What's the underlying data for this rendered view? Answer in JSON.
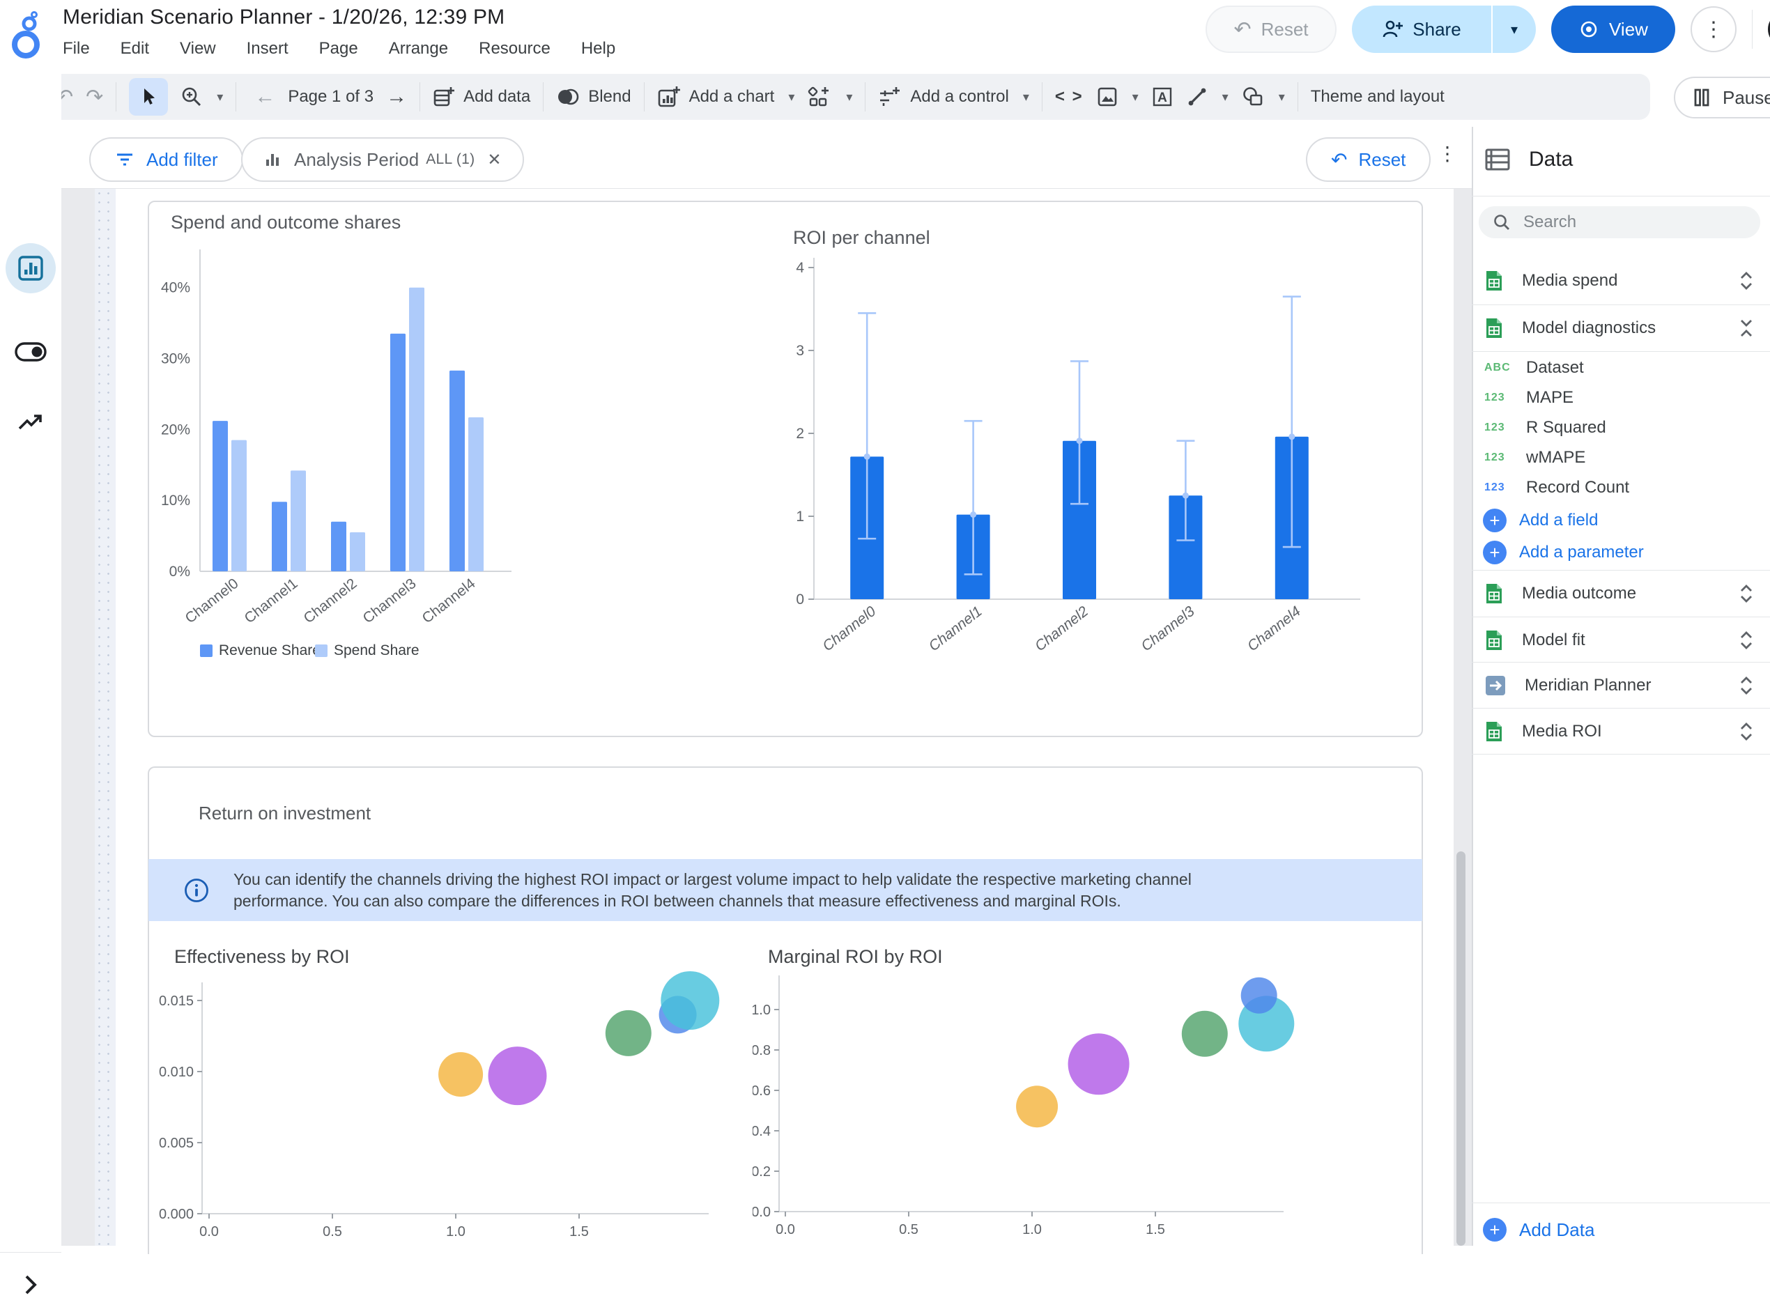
{
  "header": {
    "app_title": "Meridian Scenario Planner - 1/20/26, 12:39 PM",
    "menus": [
      "File",
      "Edit",
      "View",
      "Insert",
      "Page",
      "Arrange",
      "Resource",
      "Help"
    ],
    "reset_label": "Reset",
    "share_label": "Share",
    "view_label": "View"
  },
  "toolbar": {
    "page_label": "Page 1 of 3",
    "add_data_label": "Add data",
    "blend_label": "Blend",
    "add_chart_label": "Add a chart",
    "add_control_label": "Add a control",
    "theme_label": "Theme and layout",
    "pause_label": "Pause u"
  },
  "filter_bar": {
    "add_filter_label": "Add filter",
    "chip_name": "Analysis Period",
    "chip_value": "ALL (1)",
    "reset_label": "Reset"
  },
  "icons": {
    "undo": "↶",
    "redo": "↷",
    "back": "←",
    "forward": "→",
    "more": "⋮",
    "close": "✕",
    "caret": "▾",
    "code": "< >",
    "help": "?",
    "chevron_right": "›"
  },
  "cards": {
    "roi_title": "Return on investment",
    "roi_info_line1": "You can identify the channels driving the highest ROI impact or largest volume impact to help validate the respective marketing channel",
    "roi_info_line2": "performance. You can also compare the differences in ROI between channels that measure effectiveness and marginal ROIs."
  },
  "data_panel": {
    "title": "Data",
    "search_placeholder": "Search",
    "sources": [
      {
        "name": "Media spend",
        "icon": "sheets"
      },
      {
        "name": "Model diagnostics",
        "icon": "sheets",
        "expanded": true
      },
      {
        "name": "Media outcome",
        "icon": "sheets"
      },
      {
        "name": "Model fit",
        "icon": "sheets"
      },
      {
        "name": "Meridian Planner",
        "icon": "extract"
      },
      {
        "name": "Media ROI",
        "icon": "sheets"
      }
    ],
    "fields": [
      {
        "badge": "ABC",
        "name": "Dataset",
        "color": "green"
      },
      {
        "badge": "123",
        "name": "MAPE",
        "color": "green"
      },
      {
        "badge": "123",
        "name": "R Squared",
        "color": "green"
      },
      {
        "badge": "123",
        "name": "wMAPE",
        "color": "green"
      },
      {
        "badge": "123",
        "name": "Record Count",
        "color": "blue"
      }
    ],
    "add_field_label": "Add a field",
    "add_parameter_label": "Add a parameter",
    "add_data_label": "Add Data"
  },
  "chart_data": [
    {
      "type": "bar",
      "title": "Spend and outcome shares",
      "categories": [
        "Channel0",
        "Channel1",
        "Channel2",
        "Channel3",
        "Channel4"
      ],
      "series": [
        {
          "name": "Revenue Share",
          "color": "#5e97f6",
          "values": [
            21.2,
            9.8,
            7.0,
            33.5,
            28.3
          ]
        },
        {
          "name": "Spend Share",
          "color": "#aecbfa",
          "values": [
            18.5,
            14.2,
            5.5,
            40.0,
            21.7
          ]
        }
      ],
      "yticks": [
        "0%",
        "10%",
        "20%",
        "30%",
        "40%"
      ],
      "ylim": [
        0,
        44
      ],
      "legend_position": "bottom"
    },
    {
      "type": "bar",
      "title": "ROI per channel",
      "categories": [
        "Channel0",
        "Channel1",
        "Channel2",
        "Channel3",
        "Channel4"
      ],
      "series": [
        {
          "name": "ROI",
          "color": "#1a73e8",
          "values": [
            1.72,
            1.02,
            1.91,
            1.25,
            1.96
          ]
        }
      ],
      "error_low": [
        0.73,
        0.3,
        1.15,
        0.71,
        0.63
      ],
      "error_high": [
        3.45,
        2.15,
        2.87,
        1.91,
        3.65
      ],
      "error_color": "#a8c7fa",
      "yticks": [
        "0",
        "1",
        "2",
        "3",
        "4"
      ],
      "ylim": [
        0,
        4
      ]
    },
    {
      "type": "scatter",
      "title": "Effectiveness by ROI",
      "xlabel": "",
      "ylabel": "",
      "xticks": [
        "0.0",
        "0.5",
        "1.0",
        "1.5"
      ],
      "yticks": [
        "0.000",
        "0.005",
        "0.010",
        "0.015"
      ],
      "xlim": [
        0,
        2.03
      ],
      "ylim": [
        0,
        0.0163
      ],
      "points": [
        {
          "x": 1.02,
          "y": 0.0098,
          "r": 32,
          "color": "#f4b53f"
        },
        {
          "x": 1.25,
          "y": 0.0097,
          "r": 42,
          "color": "#b15ce6"
        },
        {
          "x": 1.7,
          "y": 0.0127,
          "r": 33,
          "color": "#53a36d"
        },
        {
          "x": 1.9,
          "y": 0.014,
          "r": 27,
          "color": "#4e86ea"
        },
        {
          "x": 1.95,
          "y": 0.015,
          "r": 42,
          "color": "#47c1da"
        }
      ]
    },
    {
      "type": "scatter",
      "title": "Marginal ROI by ROI",
      "xlabel": "",
      "ylabel": "",
      "xticks": [
        "0.0",
        "0.5",
        "1.0",
        "1.5"
      ],
      "yticks": [
        "0.0",
        "0.2",
        "0.4",
        "0.6",
        "0.8",
        "1.0"
      ],
      "xlim": [
        0,
        2.02
      ],
      "ylim": [
        0,
        1.17
      ],
      "points": [
        {
          "x": 1.02,
          "y": 0.52,
          "r": 30,
          "color": "#f4b53f"
        },
        {
          "x": 1.27,
          "y": 0.73,
          "r": 44,
          "color": "#b15ce6"
        },
        {
          "x": 1.7,
          "y": 0.88,
          "r": 33,
          "color": "#53a36d"
        },
        {
          "x": 1.95,
          "y": 0.93,
          "r": 40,
          "color": "#47c1da"
        },
        {
          "x": 1.92,
          "y": 1.07,
          "r": 26,
          "color": "#4e86ea"
        }
      ]
    }
  ]
}
